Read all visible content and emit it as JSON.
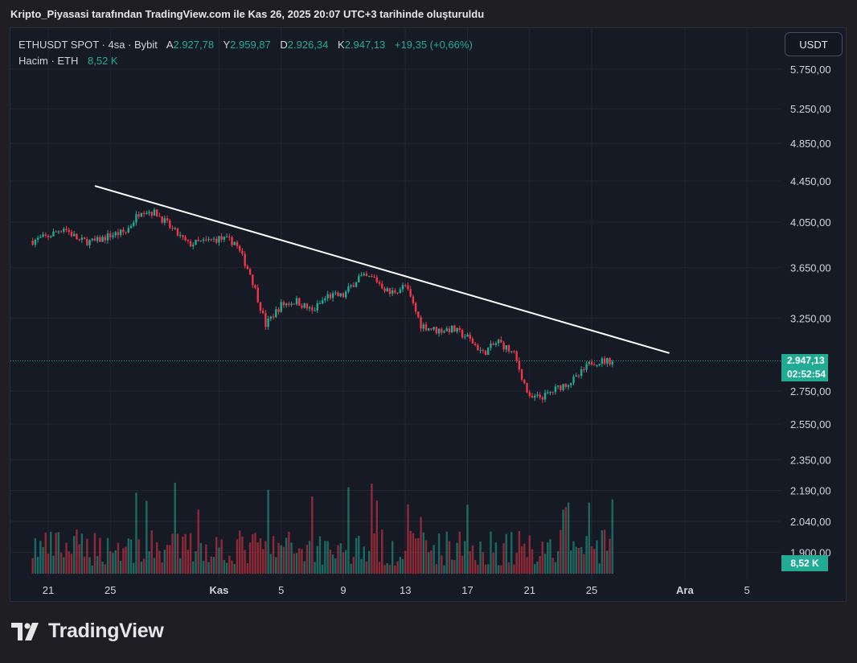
{
  "header": {
    "caption": "Kripto_Piyasasi tarafından TradingView.com ile Kas 26, 2025 20:07 UTC+3 tarihinde oluşturuldu"
  },
  "legend": {
    "symbol": "ETHUSDT SPOT · 4sa · Bybit",
    "open_label": "A",
    "open": "2.927,78",
    "high_label": "Y",
    "high": "2.959,87",
    "low_label": "D",
    "low": "2.926,34",
    "close_label": "K",
    "close": "2.947,13",
    "change": "+19,35 (+0,66%)",
    "volume_label": "Hacim · ETH",
    "volume": "8,52 K"
  },
  "toolbar": {
    "currency": "USDT"
  },
  "last_price": {
    "price": "2.947,13",
    "countdown": "02:52:54",
    "volume": "8,52 K"
  },
  "brand": {
    "name": "TradingView",
    "icon": "tradingview-logo-icon"
  },
  "colors": {
    "background": "#161a25",
    "grid": "#232632",
    "up": "#22ab94",
    "down": "#f23645",
    "trendline": "#ffffff",
    "text": "#d1d4dc"
  },
  "chart_data": {
    "type": "candlestick",
    "symbol": "ETHUSDT",
    "interval": "4h",
    "y_scale": "log",
    "price_ticks": [
      "5.750,00",
      "5.250,00",
      "4.850,00",
      "4.450,00",
      "4.050,00",
      "3.650,00",
      "3.250,00",
      "2.750,00",
      "2.550,00",
      "2.350,00",
      "2.190,00",
      "2.040,00",
      "1.900,00"
    ],
    "price_tick_values": [
      5750,
      5250,
      4850,
      4450,
      4050,
      3650,
      3250,
      2750,
      2550,
      2350,
      2190,
      2040,
      1900
    ],
    "x_ticks": [
      "21",
      "25",
      "Kas",
      "5",
      "9",
      "13",
      "17",
      "21",
      "25",
      "Ara",
      "5"
    ],
    "x_tick_dates": [
      "2025-10-21",
      "2025-10-25",
      "2025-11-01",
      "2025-11-05",
      "2025-11-09",
      "2025-11-13",
      "2025-11-17",
      "2025-11-21",
      "2025-11-25",
      "2025-12-01",
      "2025-12-05"
    ],
    "x_range": [
      "2025-10-20",
      "2025-12-07"
    ],
    "price_path": [
      [
        "2025-10-20",
        3880
      ],
      [
        "2025-10-21",
        3920
      ],
      [
        "2025-10-22",
        4000
      ],
      [
        "2025-10-23",
        3880
      ],
      [
        "2025-10-24",
        3870
      ],
      [
        "2025-10-25",
        3930
      ],
      [
        "2025-10-26",
        3960
      ],
      [
        "2025-10-27",
        4170
      ],
      [
        "2025-10-28",
        4130
      ],
      [
        "2025-10-29",
        3980
      ],
      [
        "2025-10-30",
        3850
      ],
      [
        "2025-10-31",
        3870
      ],
      [
        "2025-11-01",
        3900
      ],
      [
        "2025-11-02",
        3870
      ],
      [
        "2025-11-03",
        3600
      ],
      [
        "2025-11-04",
        3200
      ],
      [
        "2025-11-05",
        3350
      ],
      [
        "2025-11-06",
        3380
      ],
      [
        "2025-11-07",
        3300
      ],
      [
        "2025-11-08",
        3420
      ],
      [
        "2025-11-09",
        3420
      ],
      [
        "2025-11-10",
        3570
      ],
      [
        "2025-11-11",
        3560
      ],
      [
        "2025-11-12",
        3440
      ],
      [
        "2025-11-13",
        3500
      ],
      [
        "2025-11-14",
        3200
      ],
      [
        "2025-11-15",
        3160
      ],
      [
        "2025-11-16",
        3170
      ],
      [
        "2025-11-17",
        3110
      ],
      [
        "2025-11-18",
        3000
      ],
      [
        "2025-11-19",
        3080
      ],
      [
        "2025-11-20",
        2990
      ],
      [
        "2025-11-21",
        2700
      ],
      [
        "2025-11-22",
        2720
      ],
      [
        "2025-11-23",
        2780
      ],
      [
        "2025-11-24",
        2830
      ],
      [
        "2025-11-25",
        2940
      ],
      [
        "2025-11-26",
        2947
      ]
    ],
    "trendline": {
      "start": [
        "2025-10-24",
        4400
      ],
      "end": [
        "2025-11-30",
        3000
      ]
    },
    "last_price": 2947.13,
    "volume_unit": "ETH",
    "last_volume": 8520
  }
}
